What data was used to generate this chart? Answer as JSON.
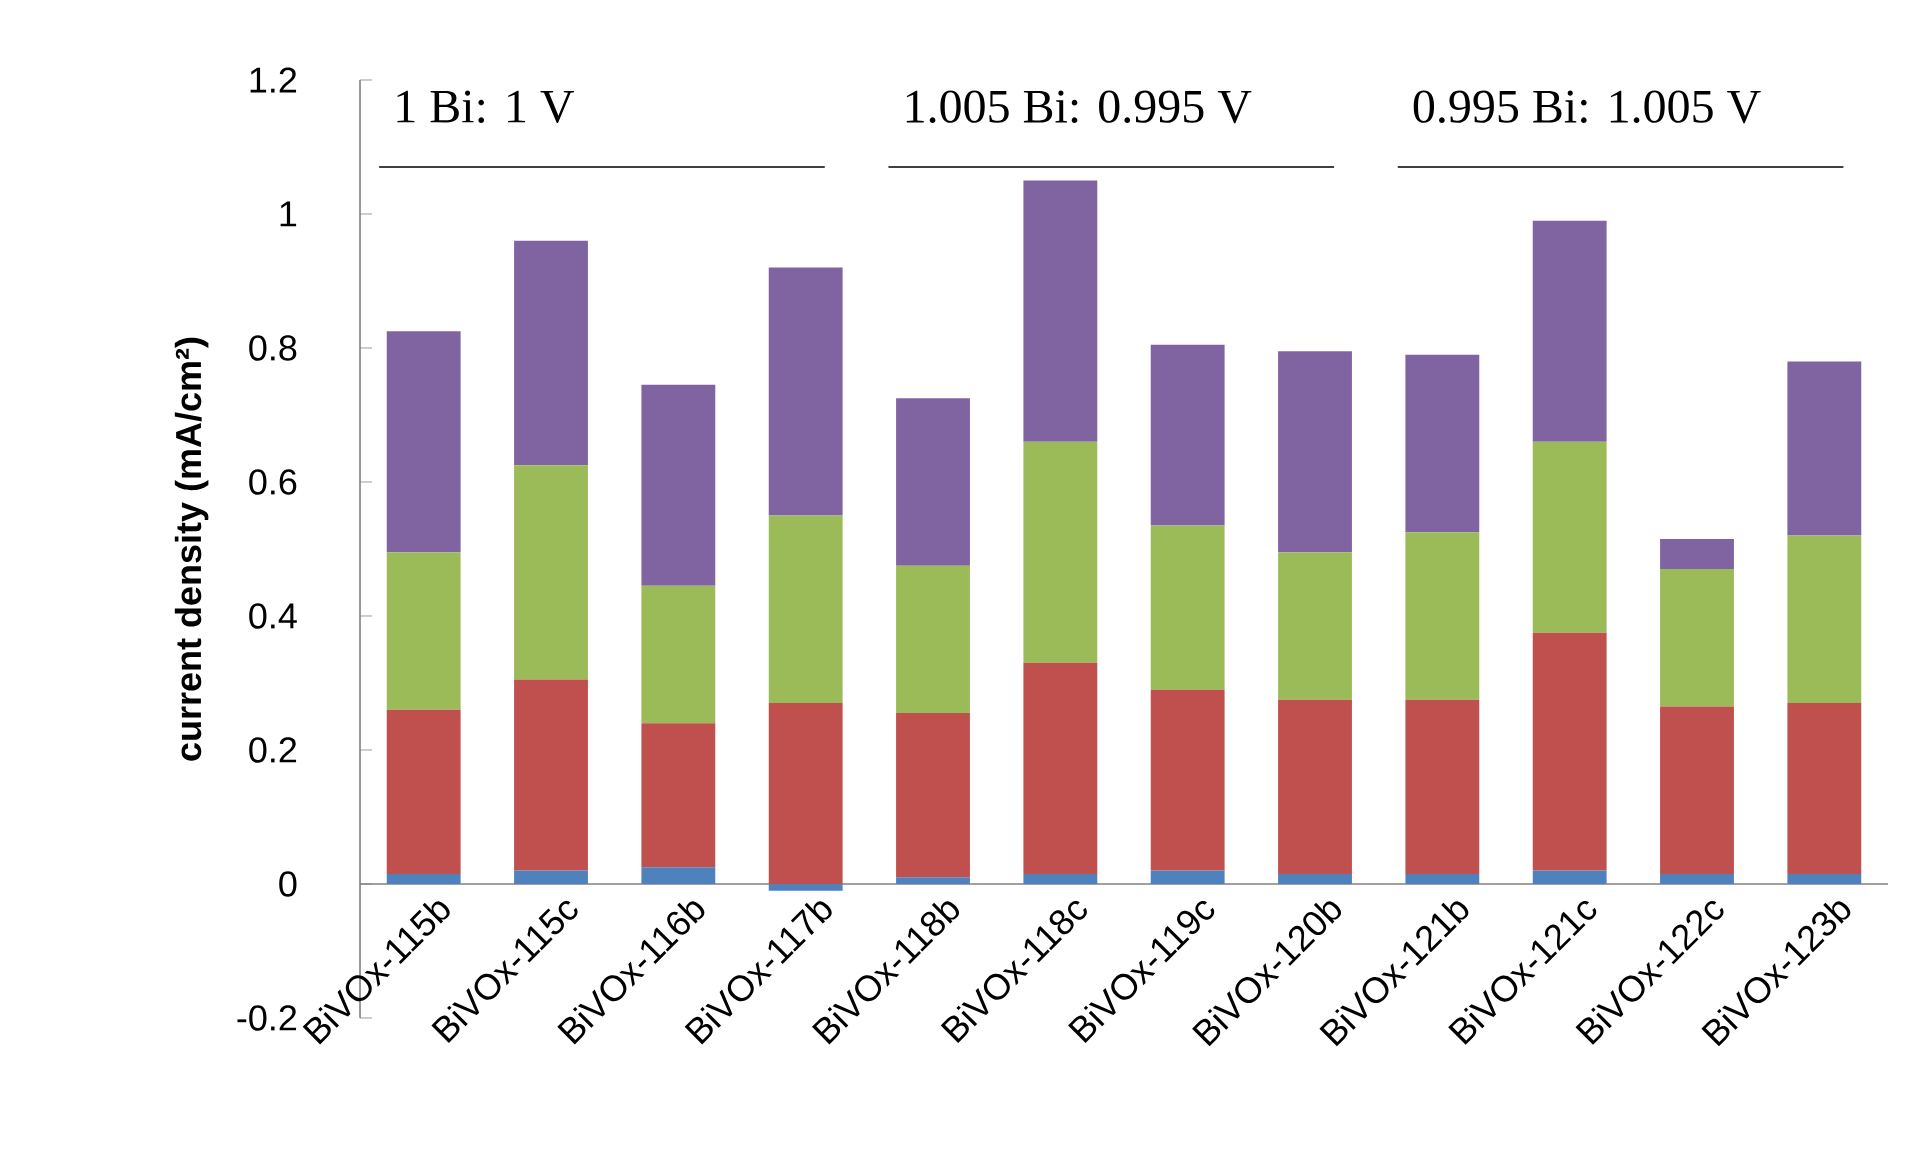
{
  "chart_data": {
    "type": "bar",
    "stacked": true,
    "ylabel": "current density (mA/cm²)",
    "categories": [
      "BiVOx-115b",
      "BiVOx-115c",
      "BiVOx-116b",
      "BiVOx-117b",
      "BiVOx-118b",
      "BiVOx-118c",
      "BiVOx-119c",
      "BiVOx-120b",
      "BiVOx-121b",
      "BiVOx-121c",
      "BiVOx-122c",
      "BiVOx-123b"
    ],
    "series": [
      {
        "color": "#4f81bd",
        "values": [
          0.015,
          0.02,
          0.025,
          -0.01,
          0.01,
          0.015,
          0.02,
          0.015,
          0.015,
          0.02,
          0.015,
          0.015
        ]
      },
      {
        "color": "#c0504d",
        "values": [
          0.245,
          0.285,
          0.215,
          0.27,
          0.245,
          0.315,
          0.27,
          0.26,
          0.26,
          0.355,
          0.25,
          0.255
        ]
      },
      {
        "color": "#9bbb59",
        "values": [
          0.235,
          0.32,
          0.205,
          0.28,
          0.22,
          0.33,
          0.245,
          0.22,
          0.25,
          0.285,
          0.205,
          0.25
        ]
      },
      {
        "color": "#8064a2",
        "values": [
          0.33,
          0.335,
          0.3,
          0.37,
          0.25,
          0.39,
          0.27,
          0.3,
          0.265,
          0.33,
          0.045,
          0.26
        ]
      }
    ],
    "ylim": [
      -0.2,
      1.2
    ],
    "yticks": [
      -0.2,
      0,
      0.2,
      0.4,
      0.6,
      0.8,
      1,
      1.2
    ],
    "annotations": [
      "1 Bi: 1 V",
      "1.005 Bi: 0.995 V",
      "0.995 Bi: 1.005 V"
    ]
  }
}
